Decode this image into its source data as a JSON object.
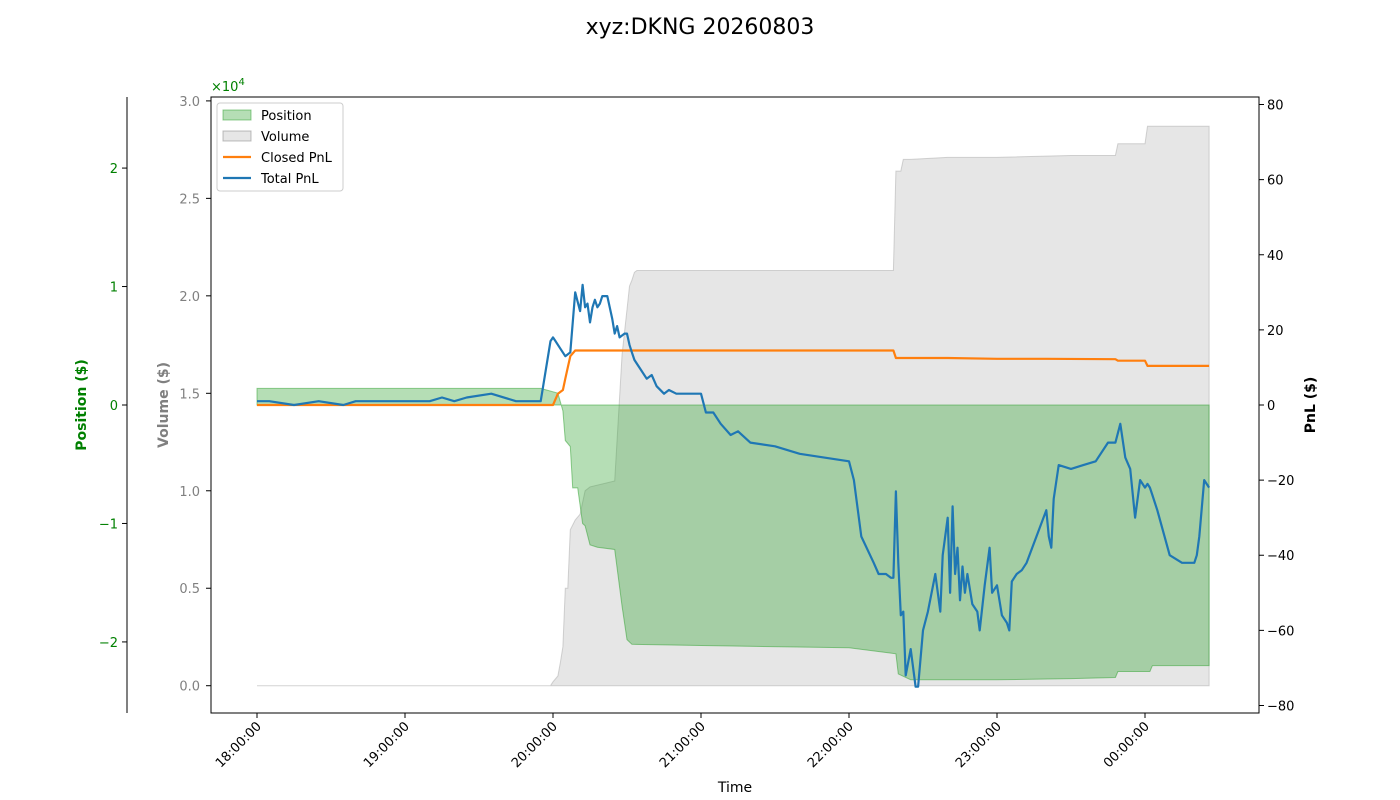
{
  "chart_data": {
    "type": "line",
    "title": "xyz:DKNG 20260803",
    "xlabel": "Time",
    "x_ticks": [
      "18:00:00",
      "19:00:00",
      "20:00:00",
      "21:00:00",
      "22:00:00",
      "23:00:00",
      "00:00:00"
    ],
    "axes": {
      "position": {
        "label": "Position ($)",
        "ylim": [
          -2.6,
          2.6
        ],
        "ticks": [
          -2,
          -1,
          0,
          1,
          2
        ],
        "tick_labels": [
          "−2",
          "−1",
          "0",
          "1",
          "2"
        ],
        "scale_label": "×10",
        "scale_exp": "4",
        "color": "#008000"
      },
      "volume": {
        "label": "Volume ($)",
        "ylim": [
          -0.14,
          3.02
        ],
        "ticks": [
          0.0,
          0.5,
          1.0,
          1.5,
          2.0,
          2.5,
          3.0
        ],
        "tick_labels": [
          "0.0",
          "0.5",
          "1.0",
          "1.5",
          "2.0",
          "2.5",
          "3.0"
        ],
        "color": "#808080"
      },
      "pnl": {
        "label": "PnL ($)",
        "ylim": [
          -82,
          82
        ],
        "ticks": [
          -80,
          -60,
          -40,
          -20,
          0,
          20,
          40,
          60,
          80
        ],
        "tick_labels": [
          "−80",
          "−60",
          "−40",
          "−20",
          "0",
          "20",
          "40",
          "60",
          "80"
        ],
        "color": "#000000"
      }
    },
    "legend": {
      "placement": "upper-left",
      "entries": [
        {
          "name": "Position",
          "kind": "patch",
          "color": "#2ca02c",
          "alpha": 0.35
        },
        {
          "name": "Volume",
          "kind": "patch",
          "color": "#808080",
          "alpha": 0.2
        },
        {
          "name": "Closed PnL",
          "kind": "line",
          "color": "#ff7f0e"
        },
        {
          "name": "Total PnL",
          "kind": "line",
          "color": "#1f77b4"
        }
      ]
    },
    "series": [
      {
        "name": "Position",
        "axis": "position",
        "color": "#2ca02c",
        "x": [
          "18:00",
          "19:55",
          "20:02",
          "20:04",
          "20:05",
          "20:07",
          "20:08",
          "20:10",
          "20:12",
          "20:13",
          "20:15",
          "20:18",
          "20:25",
          "20:28",
          "20:30",
          "20:32",
          "21:00",
          "22:00",
          "22:19",
          "22:20",
          "22:22",
          "22:25",
          "22:40",
          "23:00",
          "23:30",
          "23:48",
          "23:49",
          "24:02",
          "24:03",
          "24:26"
        ],
        "values": [
          0.14,
          0.14,
          0.1,
          -0.05,
          -0.3,
          -0.35,
          -0.7,
          -0.7,
          -1.0,
          -1.02,
          -1.18,
          -1.2,
          -1.22,
          -1.7,
          -1.98,
          -2.02,
          -2.03,
          -2.05,
          -2.1,
          -2.27,
          -2.29,
          -2.32,
          -2.32,
          -2.32,
          -2.31,
          -2.3,
          -2.25,
          -2.25,
          -2.2,
          -2.2
        ]
      },
      {
        "name": "Volume",
        "axis": "volume",
        "color": "#808080",
        "x": [
          "18:00",
          "19:59",
          "20:00",
          "20:02",
          "20:03",
          "20:04",
          "20:05",
          "20:06",
          "20:07",
          "20:09",
          "20:11",
          "20:13",
          "20:15",
          "20:25",
          "20:28",
          "20:30",
          "20:31",
          "20:32",
          "20:33",
          "20:34",
          "21:00",
          "22:00",
          "22:18",
          "22:19",
          "22:21",
          "22:22",
          "22:25",
          "22:40",
          "23:00",
          "23:30",
          "23:48",
          "23:49",
          "24:00",
          "24:01",
          "24:26"
        ],
        "values": [
          0.0,
          0.0,
          0.02,
          0.05,
          0.12,
          0.2,
          0.5,
          0.5,
          0.8,
          0.85,
          0.88,
          1.0,
          1.02,
          1.05,
          1.7,
          1.93,
          2.05,
          2.08,
          2.12,
          2.13,
          2.13,
          2.13,
          2.13,
          2.64,
          2.64,
          2.7,
          2.7,
          2.71,
          2.71,
          2.72,
          2.72,
          2.78,
          2.78,
          2.87,
          2.87
        ]
      },
      {
        "name": "Closed PnL",
        "axis": "pnl",
        "color": "#ff7f0e",
        "x": [
          "18:00",
          "20:00",
          "20:02",
          "20:04",
          "20:05",
          "20:06",
          "20:07",
          "20:09",
          "22:00",
          "22:18",
          "22:19",
          "22:40",
          "23:00",
          "23:20",
          "23:48",
          "23:49",
          "24:00",
          "24:01",
          "24:26"
        ],
        "values": [
          0,
          0,
          3,
          4,
          7,
          10,
          13,
          14.5,
          14.5,
          14.5,
          12.5,
          12.5,
          12.3,
          12.3,
          12.2,
          11.8,
          11.8,
          10.4,
          10.4
        ]
      },
      {
        "name": "Total PnL",
        "axis": "pnl",
        "color": "#1f77b4",
        "x": [
          "18:00",
          "18:05",
          "18:15",
          "18:25",
          "18:35",
          "18:40",
          "18:50",
          "19:00",
          "19:10",
          "19:15",
          "19:20",
          "19:25",
          "19:35",
          "19:45",
          "19:55",
          "19:59",
          "20:00",
          "20:01",
          "20:03",
          "20:05",
          "20:07",
          "20:09",
          "20:11",
          "20:12",
          "20:13",
          "20:14",
          "20:15",
          "20:16",
          "20:17",
          "20:18",
          "20:19",
          "20:20",
          "20:22",
          "20:24",
          "20:25",
          "20:26",
          "20:27",
          "20:29",
          "20:30",
          "20:31",
          "20:32",
          "20:33",
          "20:35",
          "20:38",
          "20:40",
          "20:42",
          "20:45",
          "20:47",
          "20:50",
          "20:55",
          "21:00",
          "21:02",
          "21:05",
          "21:08",
          "21:12",
          "21:15",
          "21:20",
          "21:30",
          "21:40",
          "21:50",
          "22:00",
          "22:02",
          "22:05",
          "22:10",
          "22:12",
          "22:15",
          "22:17",
          "22:18",
          "22:19",
          "22:20",
          "22:21",
          "22:22",
          "22:23",
          "22:25",
          "22:27",
          "22:28",
          "22:30",
          "22:32",
          "22:35",
          "22:37",
          "22:38",
          "22:40",
          "22:41",
          "22:42",
          "22:43",
          "22:44",
          "22:45",
          "22:46",
          "22:47",
          "22:48",
          "22:50",
          "22:52",
          "22:53",
          "22:55",
          "22:57",
          "22:58",
          "23:00",
          "23:02",
          "23:04",
          "23:05",
          "23:06",
          "23:08",
          "23:10",
          "23:12",
          "23:20",
          "23:21",
          "23:22",
          "23:23",
          "23:25",
          "23:30",
          "23:35",
          "23:40",
          "23:45",
          "23:48",
          "23:50",
          "23:52",
          "23:54",
          "23:56",
          "23:58",
          "24:00",
          "24:01",
          "24:02",
          "24:03",
          "24:05",
          "24:10",
          "24:15",
          "24:18",
          "24:20",
          "24:21",
          "24:22",
          "24:24",
          "24:26"
        ],
        "values": [
          1,
          1,
          0,
          1,
          0,
          1,
          1,
          1,
          1,
          2,
          1,
          2,
          3,
          1,
          1,
          17,
          18,
          17,
          15,
          13,
          14,
          30,
          25,
          32,
          26,
          27,
          22,
          26,
          28,
          26,
          27,
          29,
          29,
          23,
          19,
          21,
          18,
          19,
          19,
          16,
          14,
          12,
          10,
          7,
          8,
          5,
          3,
          4,
          3,
          3,
          3,
          -2,
          -2,
          -5,
          -8,
          -7,
          -10,
          -11,
          -13,
          -14,
          -15,
          -20,
          -35,
          -42,
          -45,
          -45,
          -46,
          -46,
          -23,
          -42,
          -56,
          -55,
          -72,
          -65,
          -75,
          -75,
          -60,
          -55,
          -45,
          -55,
          -40,
          -30,
          -50,
          -27,
          -45,
          -38,
          -52,
          -43,
          -50,
          -45,
          -53,
          -55,
          -60,
          -48,
          -38,
          -50,
          -48,
          -56,
          -58,
          -60,
          -47,
          -45,
          -44,
          -42,
          -28,
          -35,
          -38,
          -25,
          -16,
          -17,
          -16,
          -15,
          -10,
          -10,
          -5,
          -14,
          -17,
          -30,
          -20,
          -22,
          -21,
          -22,
          -24,
          -28,
          -40,
          -42,
          -42,
          -42,
          -40,
          -35,
          -20,
          -22
        ]
      }
    ]
  }
}
